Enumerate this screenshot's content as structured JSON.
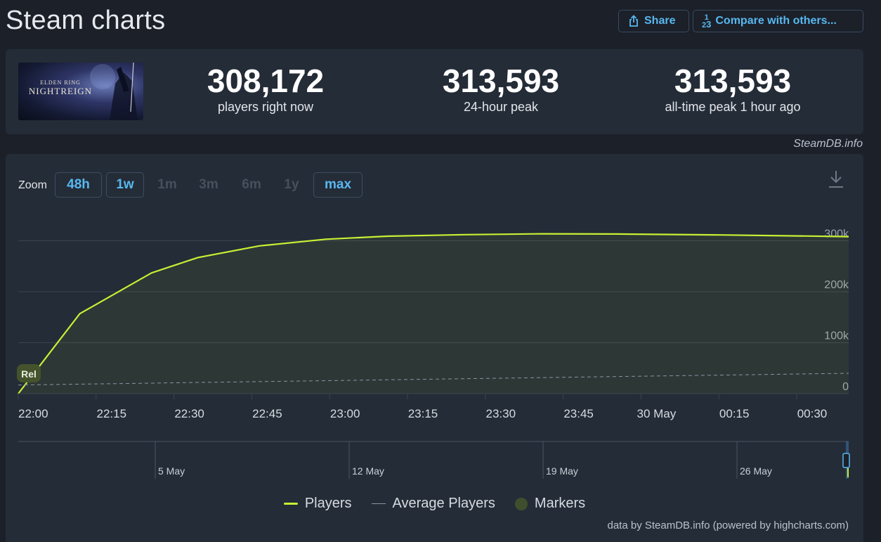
{
  "header": {
    "title": "Steam charts",
    "share_label": "Share",
    "compare_label": "Compare with others..."
  },
  "game": {
    "logo_top": "ELDEN RING",
    "logo_main": "NIGHTREIGN"
  },
  "stats": {
    "current_value": "308,172",
    "current_label": "players right now",
    "peak24_value": "313,593",
    "peak24_label": "24-hour peak",
    "alltime_value": "313,593",
    "alltime_label": "all-time peak 1 hour ago"
  },
  "credit_top": "SteamDB.info",
  "zoom": {
    "label": "Zoom",
    "buttons": [
      {
        "label": "48h",
        "state": "active"
      },
      {
        "label": "1w",
        "state": "active"
      },
      {
        "label": "1m",
        "state": "disabled"
      },
      {
        "label": "3m",
        "state": "disabled"
      },
      {
        "label": "6m",
        "state": "disabled"
      },
      {
        "label": "1y",
        "state": "disabled"
      },
      {
        "label": "max",
        "state": "active"
      }
    ]
  },
  "chart_data": {
    "type": "area",
    "series": [
      {
        "name": "Players",
        "color": "#c6f133",
        "x": [
          "21:58",
          "22:10",
          "22:24",
          "22:33",
          "22:45",
          "22:58",
          "23:10",
          "23:25",
          "23:40",
          "23:55",
          "00:15",
          "00:30",
          "00:40"
        ],
        "values": [
          0,
          157000,
          237000,
          267000,
          290000,
          303000,
          309000,
          312000,
          313593,
          313300,
          311500,
          309500,
          308172
        ]
      },
      {
        "name": "Average Players",
        "color": "#8a94a2",
        "x": [
          "21:58",
          "00:40"
        ],
        "values": [
          17000,
          40000
        ]
      }
    ],
    "marker": {
      "label": "Rel",
      "x": "21:58"
    },
    "x_ticks": [
      "22:00",
      "22:15",
      "22:30",
      "22:45",
      "23:00",
      "23:15",
      "23:30",
      "23:45",
      "30 May",
      "00:15",
      "00:30"
    ],
    "y_ticks": [
      "0",
      "100k",
      "200k",
      "300k"
    ],
    "ylim": [
      0,
      360000
    ],
    "navigator_ticks": [
      "5 May",
      "12 May",
      "19 May",
      "26 May"
    ],
    "legend": [
      "Players",
      "Average Players",
      "Markers"
    ],
    "legend_position": "bottom",
    "grid": true
  },
  "credit_bottom": "data by SteamDB.info (powered by highcharts.com)"
}
